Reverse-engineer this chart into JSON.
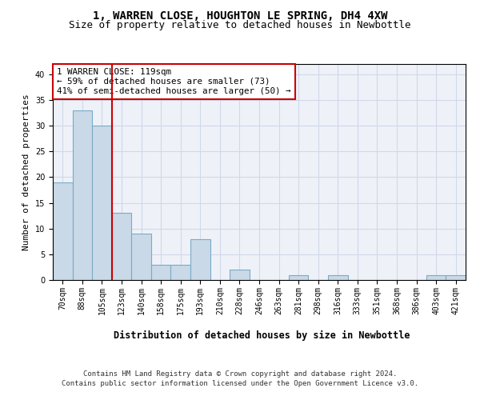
{
  "title": "1, WARREN CLOSE, HOUGHTON LE SPRING, DH4 4XW",
  "subtitle": "Size of property relative to detached houses in Newbottle",
  "xlabel": "Distribution of detached houses by size in Newbottle",
  "ylabel": "Number of detached properties",
  "footer_line1": "Contains HM Land Registry data © Crown copyright and database right 2024.",
  "footer_line2": "Contains public sector information licensed under the Open Government Licence v3.0.",
  "bar_labels": [
    "70sqm",
    "88sqm",
    "105sqm",
    "123sqm",
    "140sqm",
    "158sqm",
    "175sqm",
    "193sqm",
    "210sqm",
    "228sqm",
    "246sqm",
    "263sqm",
    "281sqm",
    "298sqm",
    "316sqm",
    "333sqm",
    "351sqm",
    "368sqm",
    "386sqm",
    "403sqm",
    "421sqm"
  ],
  "bar_values": [
    19,
    33,
    30,
    13,
    9,
    3,
    3,
    8,
    0,
    2,
    0,
    0,
    1,
    0,
    1,
    0,
    0,
    0,
    0,
    1,
    1
  ],
  "bar_color": "#c9d9e8",
  "bar_edgecolor": "#7baac8",
  "bar_linewidth": 0.8,
  "vline_x_index": 2,
  "vline_color": "#cc0000",
  "vline_linewidth": 1.5,
  "annotation_text": "1 WARREN CLOSE: 119sqm\n← 59% of detached houses are smaller (73)\n41% of semi-detached houses are larger (50) →",
  "annotation_box_edgecolor": "#cc0000",
  "annotation_box_facecolor": "white",
  "ylim": [
    0,
    42
  ],
  "yticks": [
    0,
    5,
    10,
    15,
    20,
    25,
    30,
    35,
    40
  ],
  "grid_color": "#d0d8e8",
  "bg_color": "#eef2f8",
  "fig_bg_color": "#ffffff",
  "title_fontsize": 10,
  "subtitle_fontsize": 9,
  "tick_fontsize": 7,
  "ylabel_fontsize": 8,
  "xlabel_fontsize": 8.5,
  "annotation_fontsize": 7.8,
  "footer_fontsize": 6.5
}
